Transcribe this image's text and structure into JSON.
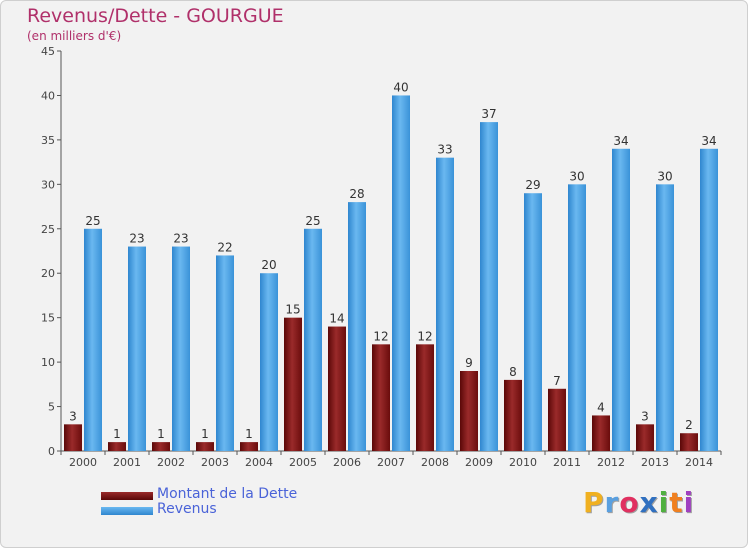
{
  "chart_data": {
    "type": "bar",
    "title": "Revenus/Dette - GOURGUE",
    "subtitle": "(en milliers d'€)",
    "categories": [
      "2000",
      "2001",
      "2002",
      "2003",
      "2004",
      "2005",
      "2006",
      "2007",
      "2008",
      "2009",
      "2010",
      "2011",
      "2012",
      "2013",
      "2014"
    ],
    "series": [
      {
        "name": "Montant de la Dette",
        "color": "#7a1010",
        "values": [
          3,
          1,
          1,
          1,
          1,
          15,
          14,
          12,
          12,
          9,
          8,
          7,
          4,
          3,
          2
        ]
      },
      {
        "name": "Revenus",
        "color": "#3f9be0",
        "values": [
          25,
          23,
          23,
          22,
          20,
          25,
          28,
          40,
          33,
          37,
          29,
          30,
          34,
          30,
          34
        ]
      }
    ],
    "ylim": [
      0,
      45
    ],
    "yticks": [
      0,
      5,
      10,
      15,
      20,
      25,
      30,
      35,
      40,
      45
    ],
    "grid": false,
    "legend_position": "bottom-left"
  },
  "logo": {
    "letters": [
      "P",
      "r",
      "o",
      "x",
      "i",
      "t",
      "i"
    ],
    "colors": [
      "#f0b020",
      "#5aa0e0",
      "#e03060",
      "#3070c0",
      "#50b040",
      "#f08020",
      "#a040c0"
    ]
  }
}
